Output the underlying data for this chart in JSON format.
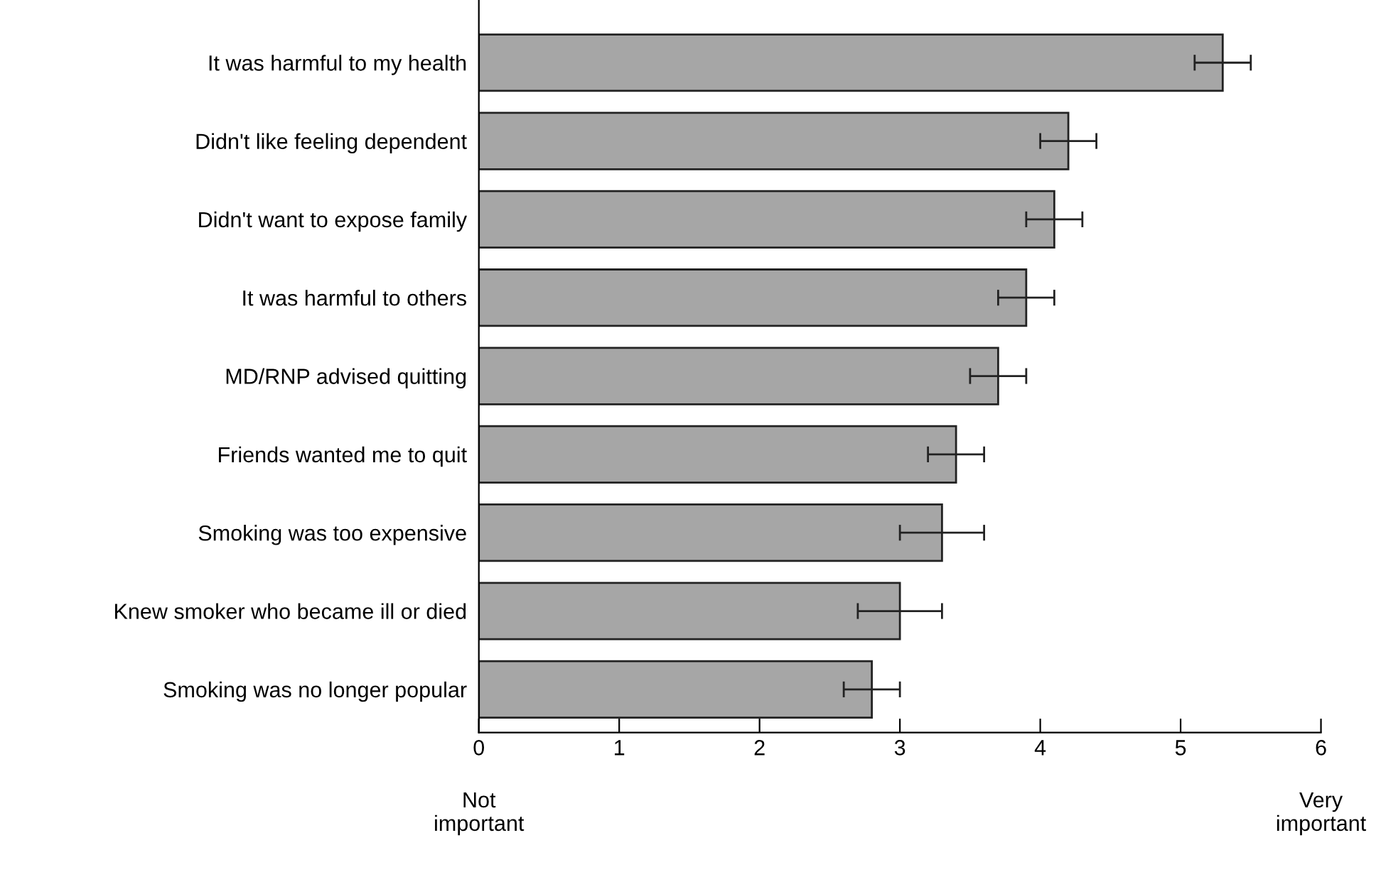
{
  "chart_data": {
    "type": "bar",
    "orientation": "horizontal",
    "categories": [
      "It was harmful to my health",
      "Didn't like feeling dependent",
      "Didn't want to expose family",
      "It was harmful to others",
      "MD/RNP advised quitting",
      "Friends wanted me to quit",
      "Smoking was too expensive",
      "Knew smoker who became ill or died",
      "Smoking was no longer popular"
    ],
    "values": [
      5.3,
      4.2,
      4.1,
      3.9,
      3.7,
      3.4,
      3.3,
      3.0,
      2.8
    ],
    "errors": [
      0.2,
      0.2,
      0.2,
      0.2,
      0.2,
      0.2,
      0.3,
      0.3,
      0.2
    ],
    "color": "#a6a6a6",
    "xlim": [
      0,
      6
    ],
    "xticks": [
      0,
      1,
      2,
      3,
      4,
      5,
      6
    ],
    "annotations": [
      "Not\nimportant",
      "Very\nimportant"
    ],
    "grid": false,
    "legend": false
  }
}
